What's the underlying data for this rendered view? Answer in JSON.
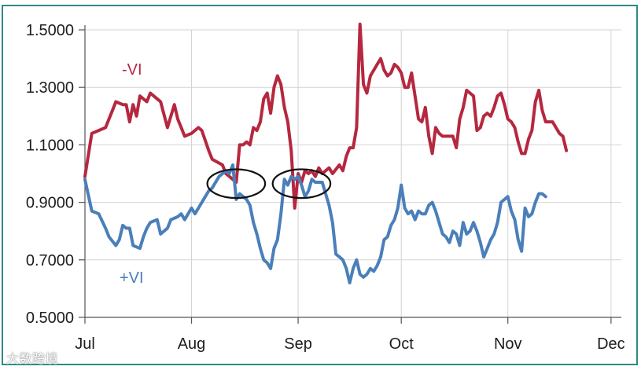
{
  "chart_data": {
    "type": "line",
    "title": "",
    "xlabel": "",
    "ylabel": "",
    "ylim": [
      0.5,
      1.5
    ],
    "y_ticks": [
      "0.5000",
      "0.7000",
      "0.9000",
      "1.1000",
      "1.3000",
      "1.5000"
    ],
    "y_tick_values": [
      0.5,
      0.7,
      0.9,
      1.1,
      1.3,
      1.5
    ],
    "x_ticks": [
      "Jul",
      "Aug",
      "Sep",
      "Oct",
      "Nov",
      "Dec"
    ],
    "x_tick_values": [
      0,
      31,
      62,
      92,
      123,
      153
    ],
    "xlim": [
      0,
      156
    ],
    "grid": true,
    "x_unit": "days",
    "series": [
      {
        "name": "-VI",
        "color": "#b5283f",
        "points": [
          [
            0,
            0.99
          ],
          [
            2,
            1.14
          ],
          [
            4,
            1.15
          ],
          [
            6,
            1.16
          ],
          [
            8,
            1.22
          ],
          [
            9,
            1.25
          ],
          [
            11,
            1.24
          ],
          [
            12,
            1.24
          ],
          [
            13,
            1.18
          ],
          [
            14,
            1.24
          ],
          [
            15,
            1.2
          ],
          [
            16,
            1.27
          ],
          [
            18,
            1.25
          ],
          [
            19,
            1.28
          ],
          [
            21,
            1.26
          ],
          [
            22,
            1.25
          ],
          [
            24,
            1.16
          ],
          [
            26,
            1.24
          ],
          [
            27,
            1.19
          ],
          [
            28,
            1.16
          ],
          [
            29,
            1.13
          ],
          [
            31,
            1.14
          ],
          [
            33,
            1.16
          ],
          [
            34,
            1.15
          ],
          [
            36,
            1.08
          ],
          [
            37,
            1.05
          ],
          [
            40,
            1.03
          ],
          [
            41,
            1.0
          ],
          [
            43,
            0.98
          ],
          [
            44,
            0.97
          ],
          [
            45,
            1.1
          ],
          [
            46,
            1.1
          ],
          [
            47,
            1.11
          ],
          [
            48,
            1.1
          ],
          [
            49,
            1.16
          ],
          [
            50,
            1.15
          ],
          [
            51,
            1.18
          ],
          [
            52,
            1.26
          ],
          [
            53,
            1.28
          ],
          [
            54,
            1.21
          ],
          [
            55,
            1.3
          ],
          [
            56,
            1.34
          ],
          [
            57,
            1.31
          ],
          [
            58,
            1.23
          ],
          [
            59,
            1.18
          ],
          [
            60,
            1.08
          ],
          [
            61,
            0.88
          ],
          [
            62,
            1.0
          ],
          [
            63,
            0.97
          ],
          [
            64,
            1.01
          ],
          [
            65,
            1.0
          ],
          [
            66,
            1.01
          ],
          [
            67,
            0.99
          ],
          [
            68,
            1.02
          ],
          [
            69,
            1.0
          ],
          [
            71,
            1.02
          ],
          [
            72,
            1.0
          ],
          [
            74,
            1.03
          ],
          [
            75,
            1.01
          ],
          [
            76,
            1.06
          ],
          [
            77,
            1.09
          ],
          [
            78,
            1.09
          ],
          [
            79,
            1.16
          ],
          [
            80,
            1.52
          ],
          [
            81,
            1.31
          ],
          [
            82,
            1.28
          ],
          [
            83,
            1.34
          ],
          [
            85,
            1.38
          ],
          [
            86,
            1.4
          ],
          [
            87,
            1.36
          ],
          [
            88,
            1.34
          ],
          [
            89,
            1.35
          ],
          [
            90,
            1.38
          ],
          [
            91,
            1.37
          ],
          [
            92,
            1.35
          ],
          [
            93,
            1.3
          ],
          [
            94,
            1.3
          ],
          [
            95,
            1.35
          ],
          [
            96,
            1.27
          ],
          [
            97,
            1.19
          ],
          [
            98,
            1.18
          ],
          [
            99,
            1.23
          ],
          [
            100,
            1.13
          ],
          [
            101,
            1.07
          ],
          [
            102,
            1.16
          ],
          [
            103,
            1.14
          ],
          [
            104,
            1.13
          ],
          [
            106,
            1.13
          ],
          [
            107,
            1.13
          ],
          [
            108,
            1.09
          ],
          [
            109,
            1.19
          ],
          [
            110,
            1.23
          ],
          [
            111,
            1.29
          ],
          [
            112,
            1.28
          ],
          [
            113,
            1.27
          ],
          [
            114,
            1.15
          ],
          [
            115,
            1.16
          ],
          [
            116,
            1.2
          ],
          [
            117,
            1.21
          ],
          [
            118,
            1.2
          ],
          [
            119,
            1.23
          ],
          [
            120,
            1.27
          ],
          [
            121,
            1.28
          ],
          [
            122,
            1.24
          ],
          [
            123,
            1.19
          ],
          [
            124,
            1.18
          ],
          [
            125,
            1.16
          ],
          [
            126,
            1.11
          ],
          [
            127,
            1.07
          ],
          [
            128,
            1.07
          ],
          [
            129,
            1.12
          ],
          [
            130,
            1.15
          ],
          [
            131,
            1.25
          ],
          [
            132,
            1.29
          ],
          [
            133,
            1.22
          ],
          [
            134,
            1.18
          ],
          [
            135,
            1.18
          ],
          [
            136,
            1.18
          ],
          [
            137,
            1.16
          ],
          [
            138,
            1.14
          ],
          [
            139,
            1.13
          ],
          [
            140,
            1.08
          ]
        ]
      },
      {
        "name": "+VI",
        "color": "#4a7fba",
        "points": [
          [
            0,
            0.98
          ],
          [
            2,
            0.87
          ],
          [
            4,
            0.86
          ],
          [
            6,
            0.81
          ],
          [
            7,
            0.78
          ],
          [
            9,
            0.75
          ],
          [
            10,
            0.77
          ],
          [
            11,
            0.82
          ],
          [
            12,
            0.81
          ],
          [
            13,
            0.81
          ],
          [
            14,
            0.75
          ],
          [
            16,
            0.74
          ],
          [
            17,
            0.78
          ],
          [
            18,
            0.81
          ],
          [
            19,
            0.83
          ],
          [
            21,
            0.84
          ],
          [
            22,
            0.79
          ],
          [
            23,
            0.8
          ],
          [
            24,
            0.81
          ],
          [
            25,
            0.84
          ],
          [
            27,
            0.85
          ],
          [
            28,
            0.86
          ],
          [
            29,
            0.84
          ],
          [
            31,
            0.88
          ],
          [
            32,
            0.86
          ],
          [
            33,
            0.88
          ],
          [
            35,
            0.92
          ],
          [
            36,
            0.94
          ],
          [
            37,
            0.95
          ],
          [
            39,
            0.99
          ],
          [
            41,
            1.01
          ],
          [
            42,
            1.0
          ],
          [
            43,
            1.03
          ],
          [
            44,
            0.91
          ],
          [
            45,
            0.93
          ],
          [
            46,
            0.92
          ],
          [
            47,
            0.91
          ],
          [
            48,
            0.89
          ],
          [
            49,
            0.83
          ],
          [
            50,
            0.79
          ],
          [
            51,
            0.74
          ],
          [
            52,
            0.7
          ],
          [
            53,
            0.69
          ],
          [
            54,
            0.67
          ],
          [
            55,
            0.74
          ],
          [
            56,
            0.77
          ],
          [
            57,
            0.86
          ],
          [
            58,
            0.98
          ],
          [
            59,
            0.96
          ],
          [
            60,
            0.99
          ],
          [
            61,
            0.98
          ],
          [
            62,
            0.99
          ],
          [
            63,
            0.96
          ],
          [
            64,
            0.92
          ],
          [
            65,
            0.94
          ],
          [
            66,
            0.98
          ],
          [
            67,
            0.97
          ],
          [
            68,
            0.97
          ],
          [
            69,
            0.97
          ],
          [
            70,
            0.93
          ],
          [
            71,
            0.89
          ],
          [
            72,
            0.83
          ],
          [
            73,
            0.72
          ],
          [
            74,
            0.71
          ],
          [
            75,
            0.7
          ],
          [
            76,
            0.67
          ],
          [
            77,
            0.62
          ],
          [
            78,
            0.67
          ],
          [
            79,
            0.7
          ],
          [
            80,
            0.65
          ],
          [
            81,
            0.64
          ],
          [
            82,
            0.65
          ],
          [
            83,
            0.67
          ],
          [
            84,
            0.66
          ],
          [
            85,
            0.68
          ],
          [
            86,
            0.71
          ],
          [
            87,
            0.77
          ],
          [
            88,
            0.78
          ],
          [
            89,
            0.82
          ],
          [
            90,
            0.84
          ],
          [
            91,
            0.88
          ],
          [
            92,
            0.96
          ],
          [
            93,
            0.88
          ],
          [
            94,
            0.86
          ],
          [
            95,
            0.87
          ],
          [
            96,
            0.84
          ],
          [
            97,
            0.87
          ],
          [
            98,
            0.86
          ],
          [
            99,
            0.86
          ],
          [
            100,
            0.89
          ],
          [
            101,
            0.9
          ],
          [
            102,
            0.87
          ],
          [
            103,
            0.83
          ],
          [
            104,
            0.79
          ],
          [
            105,
            0.78
          ],
          [
            106,
            0.76
          ],
          [
            107,
            0.8
          ],
          [
            108,
            0.79
          ],
          [
            109,
            0.75
          ],
          [
            110,
            0.83
          ],
          [
            111,
            0.79
          ],
          [
            112,
            0.8
          ],
          [
            113,
            0.83
          ],
          [
            114,
            0.8
          ],
          [
            115,
            0.76
          ],
          [
            116,
            0.71
          ],
          [
            117,
            0.74
          ],
          [
            118,
            0.77
          ],
          [
            119,
            0.79
          ],
          [
            120,
            0.83
          ],
          [
            121,
            0.9
          ],
          [
            122,
            0.91
          ],
          [
            123,
            0.92
          ],
          [
            124,
            0.87
          ],
          [
            125,
            0.84
          ],
          [
            126,
            0.77
          ],
          [
            127,
            0.73
          ],
          [
            128,
            0.88
          ],
          [
            129,
            0.85
          ],
          [
            130,
            0.86
          ],
          [
            131,
            0.9
          ],
          [
            132,
            0.93
          ],
          [
            133,
            0.93
          ],
          [
            134,
            0.92
          ]
        ]
      }
    ],
    "annotations": [
      {
        "shape": "ellipse",
        "x": 44,
        "y": 0.965,
        "rx": 4,
        "ry": 0.05
      },
      {
        "shape": "ellipse",
        "x": 63,
        "y": 0.965,
        "rx": 4,
        "ry": 0.05
      }
    ]
  },
  "watermark": "大数跨境"
}
